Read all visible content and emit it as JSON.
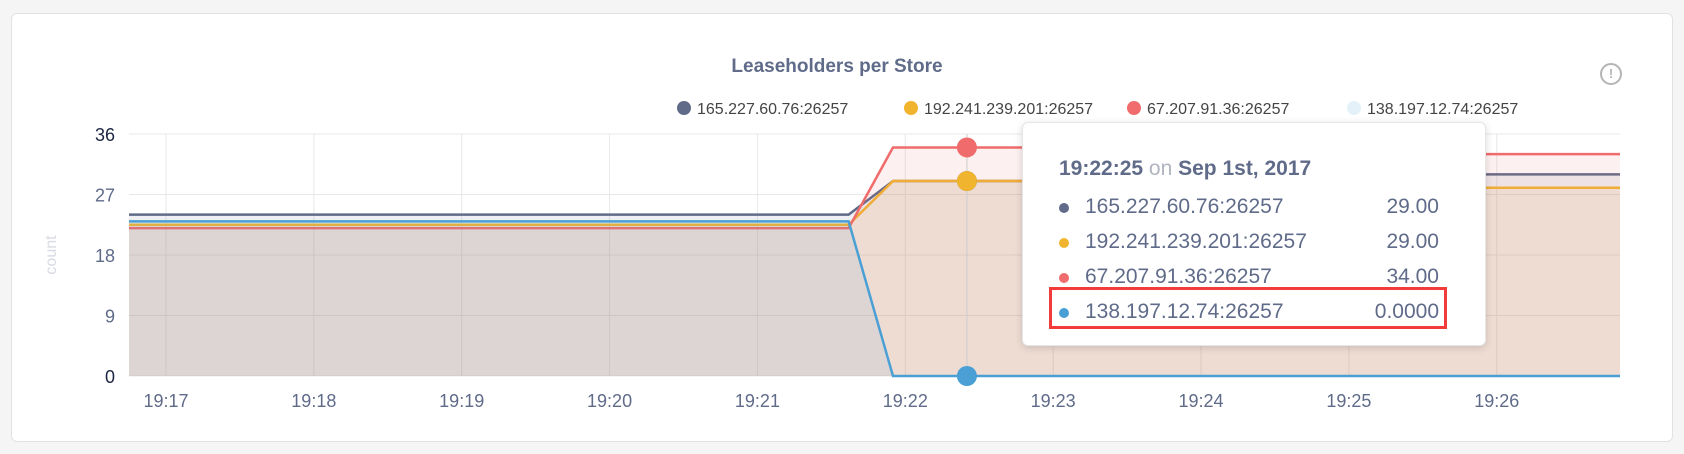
{
  "title": "Leaseholders per Store",
  "info_icon": "info-circle-icon",
  "chart_data": {
    "type": "area",
    "title": "Leaseholders per Store",
    "xlabel": "",
    "ylabel": "count",
    "ylim": [
      0,
      36
    ],
    "yticks": [
      "0",
      "9",
      "18",
      "27",
      "36"
    ],
    "xticks": [
      "19:17",
      "19:18",
      "19:19",
      "19:20",
      "19:21",
      "19:22",
      "19:23",
      "19:24",
      "19:25",
      "19:26"
    ],
    "xlim": [
      "19:16:45",
      "19:26:50"
    ],
    "grid": true,
    "legend": "top",
    "series": [
      {
        "name": "165.227.60.76:26257",
        "color": "#5f6b89",
        "points": [
          [
            "19:16:45",
            24
          ],
          [
            "19:21:37",
            24
          ],
          [
            "19:21:55",
            29
          ],
          [
            "19:24:00",
            29
          ],
          [
            "19:24:10",
            30
          ],
          [
            "19:26:50",
            30
          ]
        ]
      },
      {
        "name": "192.241.239.201:26257",
        "color": "#f1b42f",
        "points": [
          [
            "19:16:45",
            22.5
          ],
          [
            "19:21:37",
            22.5
          ],
          [
            "19:21:55",
            29
          ],
          [
            "19:24:00",
            29
          ],
          [
            "19:24:10",
            28
          ],
          [
            "19:26:50",
            28
          ]
        ]
      },
      {
        "name": "67.207.91.36:26257",
        "color": "#f06b6b",
        "points": [
          [
            "19:16:45",
            22
          ],
          [
            "19:21:37",
            22
          ],
          [
            "19:21:55",
            34
          ],
          [
            "19:24:00",
            34
          ],
          [
            "19:24:10",
            33
          ],
          [
            "19:26:50",
            33
          ]
        ]
      },
      {
        "name": "138.197.12.74:26257",
        "color": "#4a9fd5",
        "points": [
          [
            "19:16:45",
            23
          ],
          [
            "19:21:37",
            23
          ],
          [
            "19:21:55",
            0
          ],
          [
            "19:26:50",
            0
          ]
        ]
      }
    ]
  },
  "tooltip": {
    "time": "19:22:25",
    "on": "on",
    "date": "Sep 1st, 2017",
    "rows": [
      {
        "label": "165.227.60.76:26257",
        "value": "29.00",
        "color": "#5f6b89"
      },
      {
        "label": "192.241.239.201:26257",
        "value": "29.00",
        "color": "#f1b42f"
      },
      {
        "label": "67.207.91.36:26257",
        "value": "34.00",
        "color": "#f06b6b"
      },
      {
        "label": "138.197.12.74:26257",
        "value": "0.0000",
        "color": "#4a9fd5"
      }
    ]
  }
}
